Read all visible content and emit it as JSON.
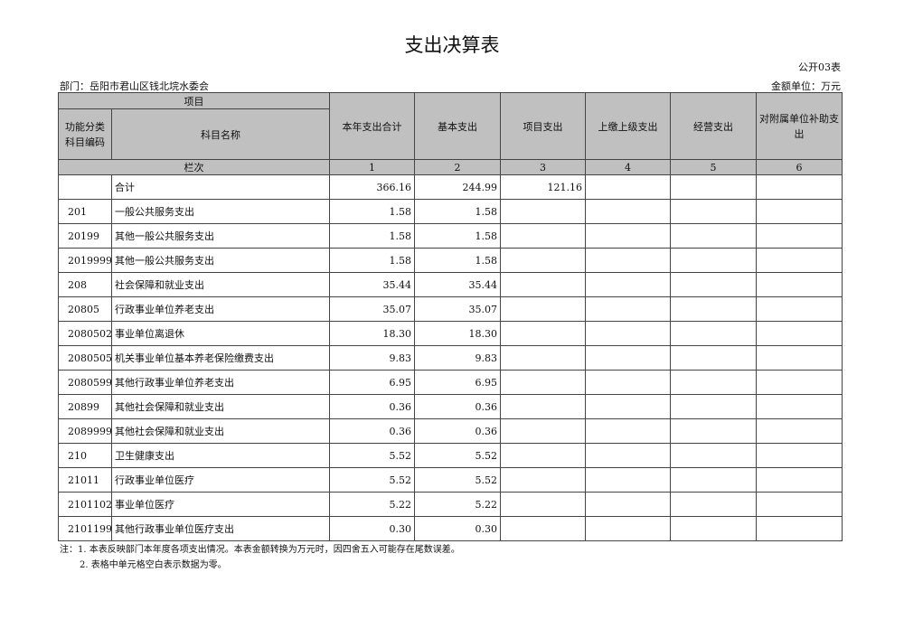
{
  "title": "支出决算表",
  "table_no": "公开03表",
  "department": "部门：岳阳市君山区钱北垸水委会",
  "unit": "金额单位：万元",
  "headers": {
    "item": "项目",
    "code": "功能分类科目编码",
    "name": "科目名称",
    "c1": "本年支出合计",
    "c2": "基本支出",
    "c3": "项目支出",
    "c4": "上缴上级支出",
    "c5": "经营支出",
    "c6": "对附属单位补助支出",
    "row_label": "栏次",
    "nums": [
      "1",
      "2",
      "3",
      "4",
      "5",
      "6"
    ]
  },
  "rows": [
    {
      "code": "",
      "name": "合计",
      "c1": "366.16",
      "c2": "244.99",
      "c3": "121.16"
    },
    {
      "code": "201",
      "name": "一般公共服务支出",
      "c1": "1.58",
      "c2": "1.58",
      "c3": ""
    },
    {
      "code": "20199",
      "name": "其他一般公共服务支出",
      "c1": "1.58",
      "c2": "1.58",
      "c3": ""
    },
    {
      "code": "2019999",
      "name": "其他一般公共服务支出",
      "c1": "1.58",
      "c2": "1.58",
      "c3": ""
    },
    {
      "code": "208",
      "name": "社会保障和就业支出",
      "c1": "35.44",
      "c2": "35.44",
      "c3": ""
    },
    {
      "code": "20805",
      "name": "行政事业单位养老支出",
      "c1": "35.07",
      "c2": "35.07",
      "c3": ""
    },
    {
      "code": "2080502",
      "name": "事业单位离退休",
      "c1": "18.30",
      "c2": "18.30",
      "c3": ""
    },
    {
      "code": "2080505",
      "name": "机关事业单位基本养老保险缴费支出",
      "c1": "9.83",
      "c2": "9.83",
      "c3": ""
    },
    {
      "code": "2080599",
      "name": "其他行政事业单位养老支出",
      "c1": "6.95",
      "c2": "6.95",
      "c3": ""
    },
    {
      "code": "20899",
      "name": "其他社会保障和就业支出",
      "c1": "0.36",
      "c2": "0.36",
      "c3": ""
    },
    {
      "code": "2089999",
      "name": "其他社会保障和就业支出",
      "c1": "0.36",
      "c2": "0.36",
      "c3": ""
    },
    {
      "code": "210",
      "name": "卫生健康支出",
      "c1": "5.52",
      "c2": "5.52",
      "c3": ""
    },
    {
      "code": "21011",
      "name": "行政事业单位医疗",
      "c1": "5.52",
      "c2": "5.52",
      "c3": ""
    },
    {
      "code": "2101102",
      "name": "事业单位医疗",
      "c1": "5.22",
      "c2": "5.22",
      "c3": ""
    },
    {
      "code": "2101199",
      "name": "其他行政事业单位医疗支出",
      "c1": "0.30",
      "c2": "0.30",
      "c3": ""
    }
  ],
  "notes": [
    "注：1. 本表反映部门本年度各项支出情况。本表金额转换为万元时，因四舍五入可能存在尾数误差。",
    "2. 表格中单元格空白表示数据为零。"
  ]
}
